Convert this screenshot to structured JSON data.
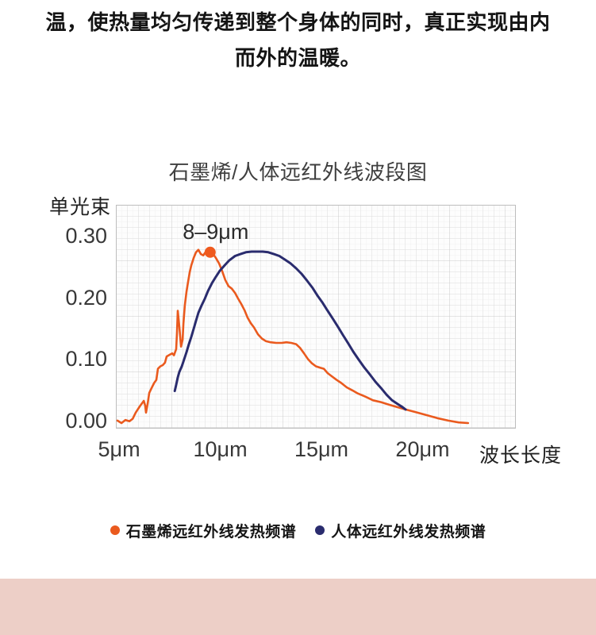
{
  "intro": {
    "line1": "温，使热量均匀传递到整个身体的同时，真正实现由内",
    "line2": "而外的温暖。"
  },
  "chart_data": {
    "type": "line",
    "title": "石墨烯/人体远红外线波段图",
    "xlabel": "波长长度",
    "ylabel": "单光束",
    "x_unit": "μm",
    "xlim": [
      4.84,
      24.61
    ],
    "ylim": [
      -0.013,
      0.35
    ],
    "grid": true,
    "legend_position": "bottom",
    "x_ticks": [
      {
        "value": 5,
        "label": "5μm"
      },
      {
        "value": 10,
        "label": "10μm"
      },
      {
        "value": 15,
        "label": "15μm"
      },
      {
        "value": 20,
        "label": "20μm"
      }
    ],
    "y_ticks": [
      {
        "value": 0.0,
        "label": "0.00"
      },
      {
        "value": 0.1,
        "label": "0.10"
      },
      {
        "value": 0.2,
        "label": "0.20"
      },
      {
        "value": 0.3,
        "label": "0.30"
      }
    ],
    "annotation": {
      "text": "8–9μm",
      "x": 9.5,
      "y": 0.273
    },
    "marker": {
      "x": 9.5,
      "y": 0.273,
      "color": "#EF5A1E"
    },
    "series": [
      {
        "name": "石墨烯远红外线发热频谱",
        "color": "#EA5A1E",
        "stroke_width": 2.6,
        "points": [
          [
            4.92,
            0.0
          ],
          [
            5.12,
            -0.004
          ],
          [
            5.31,
            0.001
          ],
          [
            5.51,
            -0.001
          ],
          [
            5.67,
            0.003
          ],
          [
            5.82,
            0.013
          ],
          [
            6.02,
            0.023
          ],
          [
            6.22,
            0.032
          ],
          [
            6.29,
            0.024
          ],
          [
            6.33,
            0.013
          ],
          [
            6.41,
            0.027
          ],
          [
            6.49,
            0.045
          ],
          [
            6.61,
            0.053
          ],
          [
            6.73,
            0.061
          ],
          [
            6.84,
            0.066
          ],
          [
            6.92,
            0.084
          ],
          [
            7.04,
            0.088
          ],
          [
            7.16,
            0.09
          ],
          [
            7.27,
            0.094
          ],
          [
            7.35,
            0.104
          ],
          [
            7.51,
            0.107
          ],
          [
            7.63,
            0.109
          ],
          [
            7.71,
            0.106
          ],
          [
            7.82,
            0.116
          ],
          [
            7.86,
            0.142
          ],
          [
            7.9,
            0.178
          ],
          [
            7.98,
            0.152
          ],
          [
            8.06,
            0.12
          ],
          [
            8.14,
            0.131
          ],
          [
            8.18,
            0.157
          ],
          [
            8.25,
            0.187
          ],
          [
            8.33,
            0.209
          ],
          [
            8.41,
            0.225
          ],
          [
            8.49,
            0.241
          ],
          [
            8.57,
            0.252
          ],
          [
            8.69,
            0.264
          ],
          [
            8.8,
            0.273
          ],
          [
            8.92,
            0.277
          ],
          [
            9.04,
            0.27
          ],
          [
            9.16,
            0.268
          ],
          [
            9.27,
            0.273
          ],
          [
            9.39,
            0.276
          ],
          [
            9.55,
            0.273
          ],
          [
            9.67,
            0.269
          ],
          [
            9.78,
            0.264
          ],
          [
            9.94,
            0.255
          ],
          [
            10.1,
            0.242
          ],
          [
            10.25,
            0.228
          ],
          [
            10.41,
            0.218
          ],
          [
            10.57,
            0.214
          ],
          [
            10.73,
            0.207
          ],
          [
            10.88,
            0.198
          ],
          [
            11.04,
            0.189
          ],
          [
            11.2,
            0.179
          ],
          [
            11.35,
            0.167
          ],
          [
            11.51,
            0.158
          ],
          [
            11.67,
            0.151
          ],
          [
            11.86,
            0.14
          ],
          [
            12.06,
            0.133
          ],
          [
            12.25,
            0.129
          ],
          [
            12.49,
            0.127
          ],
          [
            12.76,
            0.126
          ],
          [
            13.04,
            0.126
          ],
          [
            13.27,
            0.127
          ],
          [
            13.51,
            0.126
          ],
          [
            13.75,
            0.124
          ],
          [
            13.94,
            0.118
          ],
          [
            14.14,
            0.109
          ],
          [
            14.33,
            0.1
          ],
          [
            14.53,
            0.093
          ],
          [
            14.73,
            0.088
          ],
          [
            14.92,
            0.086
          ],
          [
            15.12,
            0.084
          ],
          [
            15.31,
            0.077
          ],
          [
            15.51,
            0.072
          ],
          [
            15.75,
            0.066
          ],
          [
            15.98,
            0.061
          ],
          [
            16.25,
            0.054
          ],
          [
            16.53,
            0.049
          ],
          [
            16.8,
            0.044
          ],
          [
            17.16,
            0.039
          ],
          [
            17.55,
            0.033
          ],
          [
            17.94,
            0.03
          ],
          [
            18.33,
            0.026
          ],
          [
            18.73,
            0.022
          ],
          [
            19.16,
            0.018
          ],
          [
            19.63,
            0.014
          ],
          [
            20.18,
            0.009
          ],
          [
            20.73,
            0.004
          ],
          [
            21.27,
            0.0
          ],
          [
            21.78,
            -0.003
          ],
          [
            22.25,
            -0.004
          ]
        ]
      },
      {
        "name": "人体远红外线发热频谱",
        "color": "#2A2C6E",
        "stroke_width": 3,
        "points": [
          [
            7.75,
            0.048
          ],
          [
            7.82,
            0.058
          ],
          [
            7.9,
            0.07
          ],
          [
            7.98,
            0.079
          ],
          [
            8.1,
            0.088
          ],
          [
            8.22,
            0.1
          ],
          [
            8.33,
            0.111
          ],
          [
            8.45,
            0.124
          ],
          [
            8.57,
            0.136
          ],
          [
            8.69,
            0.149
          ],
          [
            8.8,
            0.162
          ],
          [
            8.92,
            0.175
          ],
          [
            9.08,
            0.187
          ],
          [
            9.24,
            0.198
          ],
          [
            9.39,
            0.21
          ],
          [
            9.59,
            0.223
          ],
          [
            9.78,
            0.233
          ],
          [
            9.98,
            0.243
          ],
          [
            10.22,
            0.252
          ],
          [
            10.45,
            0.26
          ],
          [
            10.73,
            0.267
          ],
          [
            11.0,
            0.27
          ],
          [
            11.27,
            0.273
          ],
          [
            11.55,
            0.274
          ],
          [
            11.82,
            0.274
          ],
          [
            12.1,
            0.274
          ],
          [
            12.37,
            0.273
          ],
          [
            12.65,
            0.27
          ],
          [
            12.92,
            0.267
          ],
          [
            13.2,
            0.261
          ],
          [
            13.47,
            0.255
          ],
          [
            13.75,
            0.247
          ],
          [
            14.02,
            0.238
          ],
          [
            14.29,
            0.227
          ],
          [
            14.57,
            0.215
          ],
          [
            14.8,
            0.203
          ],
          [
            15.04,
            0.192
          ],
          [
            15.27,
            0.18
          ],
          [
            15.55,
            0.166
          ],
          [
            15.82,
            0.152
          ],
          [
            16.06,
            0.139
          ],
          [
            16.33,
            0.125
          ],
          [
            16.57,
            0.112
          ],
          [
            16.84,
            0.099
          ],
          [
            17.12,
            0.086
          ],
          [
            17.39,
            0.075
          ],
          [
            17.67,
            0.063
          ],
          [
            17.94,
            0.053
          ],
          [
            18.22,
            0.042
          ],
          [
            18.49,
            0.033
          ],
          [
            18.76,
            0.027
          ],
          [
            19.0,
            0.022
          ],
          [
            19.16,
            0.018
          ]
        ]
      }
    ]
  },
  "footer": {
    "band_color": "#EDCFC7"
  }
}
